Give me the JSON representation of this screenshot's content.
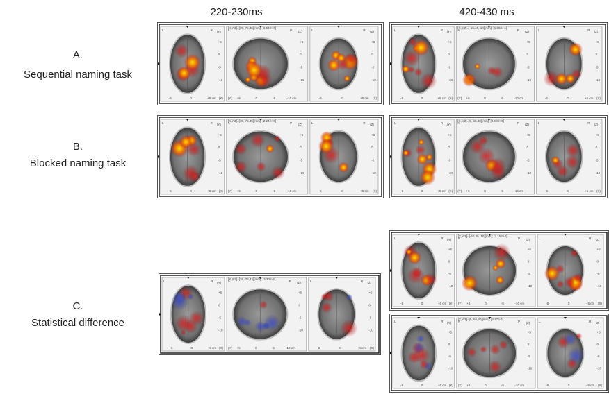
{
  "columns": [
    "220-230ms",
    "420-430 ms"
  ],
  "rows": [
    {
      "letter": "A.",
      "label": "Sequential naming task"
    },
    {
      "letter": "B.",
      "label": "Blocked naming task"
    },
    {
      "letter": "C.",
      "label": "Statistical difference"
    }
  ],
  "panels": [
    {
      "header": "[X,Y,Z]=[35,-75,45][mm]; [6.54E+0]"
    },
    {
      "header": "[X,Y,Z]=[-50,45,-10][mm]; [1.85E+1]"
    },
    {
      "header": "[X,Y,Z]=[35,-75,45][mm]; [2.24E+0]"
    },
    {
      "header": "[X,Y,Z]=[5,-65,40][mm]; [2.90E+0]"
    },
    {
      "header": "[X,Y,Z]=[35,-75,45][mm]; [3.30E-2]"
    },
    {
      "header": "[X,Y,Z]=[-50,45,-10][mm]; [3.15E+0]"
    },
    {
      "header": "[X,Y,Z]=[5,-65,40][mm]; [4.37E-1]"
    }
  ],
  "view_labels": {
    "left": "L",
    "right": "R",
    "anterior": "A",
    "posterior": "P",
    "y_axis": "(Y)",
    "z_axis": "(Z)",
    "x_axis": "(X)",
    "ticks_v": [
      "+5",
      "0",
      "-5",
      "-10"
    ],
    "ticks_axial": [
      "-5",
      "0",
      "+5 cm"
    ],
    "ticks_sagittal": [
      "+5",
      "0",
      "-5",
      "-10 cm"
    ]
  }
}
